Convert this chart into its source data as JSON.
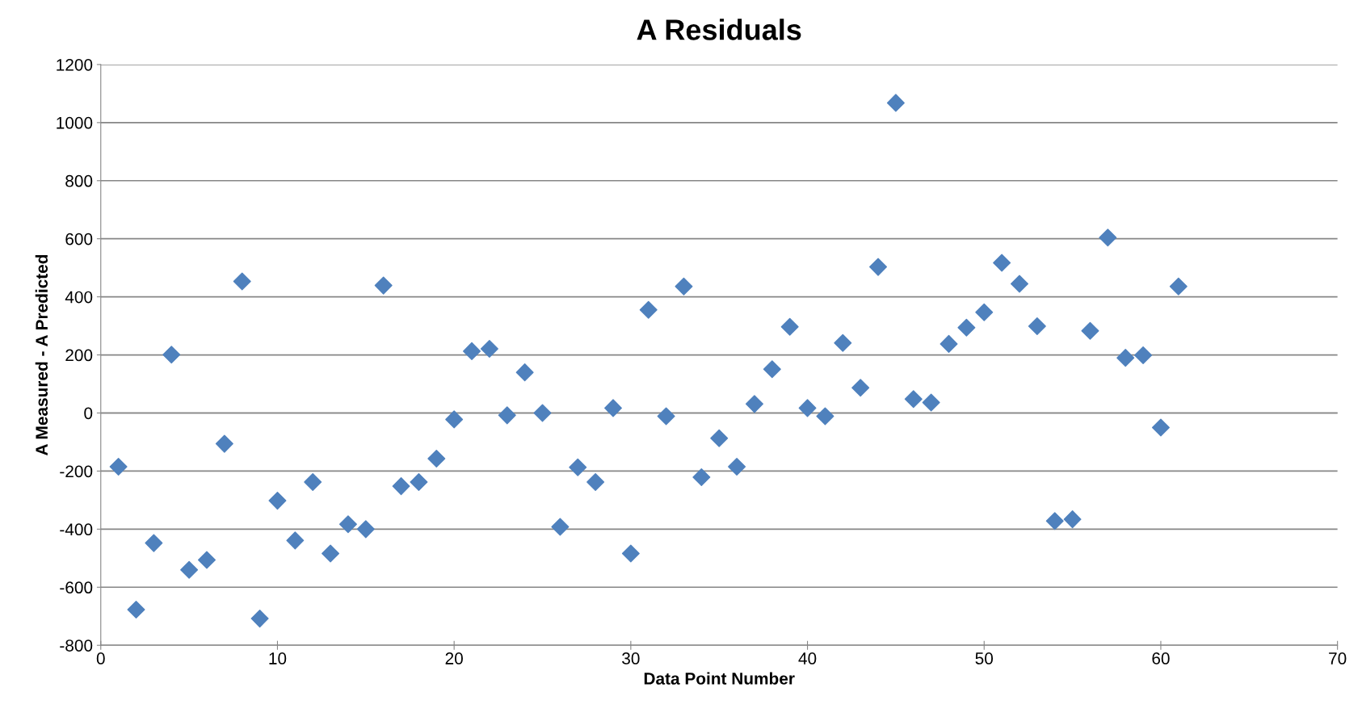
{
  "chart_data": {
    "type": "scatter",
    "title": "A Residuals",
    "xlabel": "Data Point Number",
    "ylabel": "A Measured - A Predicted",
    "x": [
      1,
      2,
      3,
      4,
      5,
      6,
      7,
      8,
      9,
      10,
      11,
      12,
      13,
      14,
      15,
      16,
      17,
      18,
      19,
      20,
      21,
      22,
      23,
      24,
      25,
      26,
      27,
      28,
      29,
      30,
      31,
      32,
      33,
      34,
      35,
      36,
      37,
      38,
      39,
      40,
      41,
      42,
      43,
      44,
      45,
      46,
      47,
      48,
      49,
      50,
      51,
      52,
      53,
      54,
      55,
      56,
      57,
      58,
      59,
      60,
      61
    ],
    "series": [
      {
        "color": "#4f81bd",
        "values": [
          -185,
          -677,
          -448,
          201,
          -540,
          -506,
          -106,
          453,
          -708,
          -302,
          -439,
          -238,
          -484,
          -383,
          -400,
          439,
          -252,
          -238,
          -157,
          -22,
          213,
          221,
          -8,
          140,
          0,
          -392,
          -187,
          -238,
          17,
          -484,
          355,
          -11,
          436,
          -221,
          -87,
          -185,
          31,
          151,
          297,
          17,
          -11,
          241,
          87,
          503,
          1068,
          48,
          36,
          238,
          294,
          347,
          517,
          445,
          299,
          -372,
          -366,
          283,
          604,
          190,
          199,
          -50,
          436
        ]
      }
    ],
    "xlim": [
      0,
      70
    ],
    "xticks": [
      0,
      10,
      20,
      30,
      40,
      50,
      60,
      70
    ],
    "ylim": [
      -800,
      1200
    ],
    "yticks": [
      -800,
      -600,
      -400,
      -200,
      0,
      200,
      400,
      600,
      800,
      1000,
      1200
    ],
    "grid": "y",
    "marker": "diamond",
    "legend": false
  }
}
